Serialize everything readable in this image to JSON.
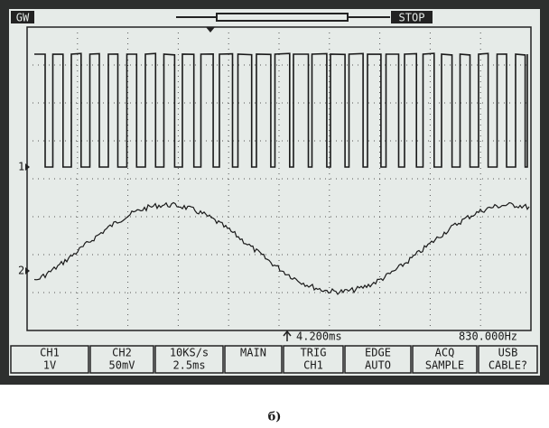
{
  "header": {
    "brand": "GW",
    "status": "STOP"
  },
  "channel_markers": [
    "1",
    "2"
  ],
  "status_line": {
    "time": "4.200ms",
    "frequency": "830.000Hz"
  },
  "menu": [
    {
      "top": "CH1",
      "bottom": "1V"
    },
    {
      "top": "CH2",
      "bottom": "50mV"
    },
    {
      "top": "10KS/s",
      "bottom": "2.5ms"
    },
    {
      "top": "MAIN",
      "bottom": null
    },
    {
      "top": "TRIG",
      "bottom": "CH1"
    },
    {
      "top": "EDGE",
      "bottom": "AUTO"
    },
    {
      "top": "ACQ",
      "bottom": "SAMPLE"
    },
    {
      "top": "USB",
      "bottom": "CABLE?"
    }
  ],
  "caption": "б)"
}
